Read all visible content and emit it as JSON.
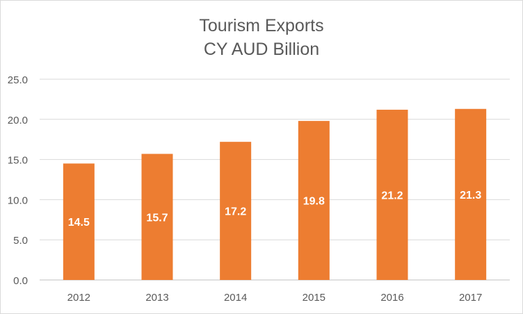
{
  "chart_data": {
    "type": "bar",
    "title": "Tourism Exports",
    "subtitle": "CY AUD Billion",
    "xlabel": "",
    "ylabel": "",
    "categories": [
      "2012",
      "2013",
      "2014",
      "2015",
      "2016",
      "2017"
    ],
    "values": [
      14.5,
      15.7,
      17.2,
      19.8,
      21.2,
      21.3
    ],
    "data_labels": [
      "14.5",
      "15.7",
      "17.2",
      "19.8",
      "21.2",
      "21.3"
    ],
    "ylim": [
      0,
      25
    ],
    "yticks": [
      "0.0",
      "5.0",
      "10.0",
      "15.0",
      "20.0",
      "25.0"
    ],
    "ytick_values": [
      0,
      5,
      10,
      15,
      20,
      25
    ],
    "grid": true,
    "legend": "none",
    "bar_color": "#ED7D31"
  }
}
